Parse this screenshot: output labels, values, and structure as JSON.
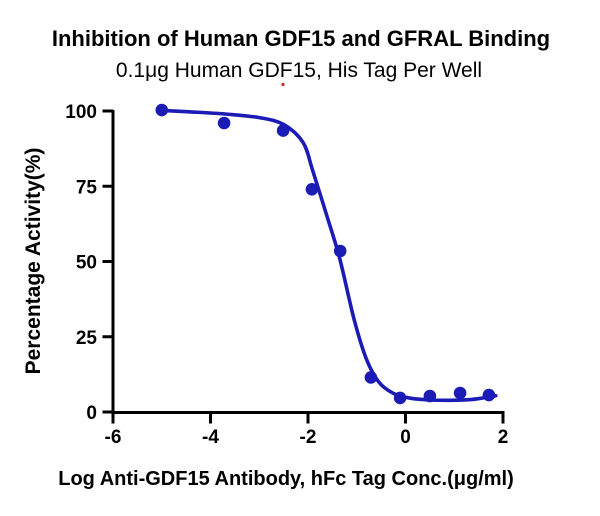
{
  "chart_data": {
    "type": "scatter",
    "title": "Inhibition of Human GDF15 and GFRAL Binding",
    "subtitle": "0.1μg Human GDF15, His Tag Per Well",
    "xlabel": "Log Anti-GDF15 Antibody, hFc Tag Conc.(μg/ml)",
    "ylabel": "Percentage Activity(%)",
    "xlim": [
      -6,
      2
    ],
    "ylim": [
      0,
      100
    ],
    "x_ticks": [
      "-6",
      "-4",
      "-2",
      "0",
      "2"
    ],
    "x_tick_values": [
      -6,
      -4,
      -2,
      0,
      2
    ],
    "y_ticks": [
      "0",
      "25",
      "50",
      "75",
      "100"
    ],
    "y_tick_values": [
      0,
      25,
      50,
      75,
      100
    ],
    "grid": false,
    "legend": "none",
    "series": [
      {
        "name": "Anti-GDF15 Antibody, hFc Tag",
        "marker": "filled-circle",
        "points": [
          {
            "x": -5.0,
            "y": 100.3
          },
          {
            "x": -3.72,
            "y": 96.0
          },
          {
            "x": -2.51,
            "y": 93.5
          },
          {
            "x": -1.92,
            "y": 74.0
          },
          {
            "x": -1.34,
            "y": 53.5
          },
          {
            "x": -0.71,
            "y": 11.5
          },
          {
            "x": -0.11,
            "y": 4.7
          },
          {
            "x": 0.5,
            "y": 5.3
          },
          {
            "x": 1.12,
            "y": 6.3
          },
          {
            "x": 1.71,
            "y": 5.6
          }
        ]
      }
    ],
    "fit_curve": {
      "name": "four-parameter-logistic-fit",
      "control_points": [
        {
          "x": -5.0,
          "y": 100.2
        },
        {
          "x": -4.4,
          "y": 99.7
        },
        {
          "x": -3.7,
          "y": 99.0
        },
        {
          "x": -3.0,
          "y": 97.8
        },
        {
          "x": -2.5,
          "y": 95.5
        },
        {
          "x": -2.1,
          "y": 89.5
        },
        {
          "x": -1.9,
          "y": 80.0
        },
        {
          "x": -1.6,
          "y": 64.5
        },
        {
          "x": -1.35,
          "y": 51.0
        },
        {
          "x": -1.05,
          "y": 30.5
        },
        {
          "x": -0.8,
          "y": 17.5
        },
        {
          "x": -0.55,
          "y": 10.0
        },
        {
          "x": -0.25,
          "y": 6.2
        },
        {
          "x": 0.1,
          "y": 4.6
        },
        {
          "x": 0.5,
          "y": 4.0
        },
        {
          "x": 0.9,
          "y": 3.9
        },
        {
          "x": 1.3,
          "y": 4.1
        },
        {
          "x": 1.6,
          "y": 4.7
        },
        {
          "x": 1.85,
          "y": 5.4
        }
      ]
    },
    "colors": {
      "series_blue": "#1b1bb5",
      "axis_black": "#000000",
      "background": "#ffffff",
      "artifact_red": "#dd2222"
    },
    "artifact_dot": {
      "note": "tiny red speck under subtitle comma"
    }
  }
}
